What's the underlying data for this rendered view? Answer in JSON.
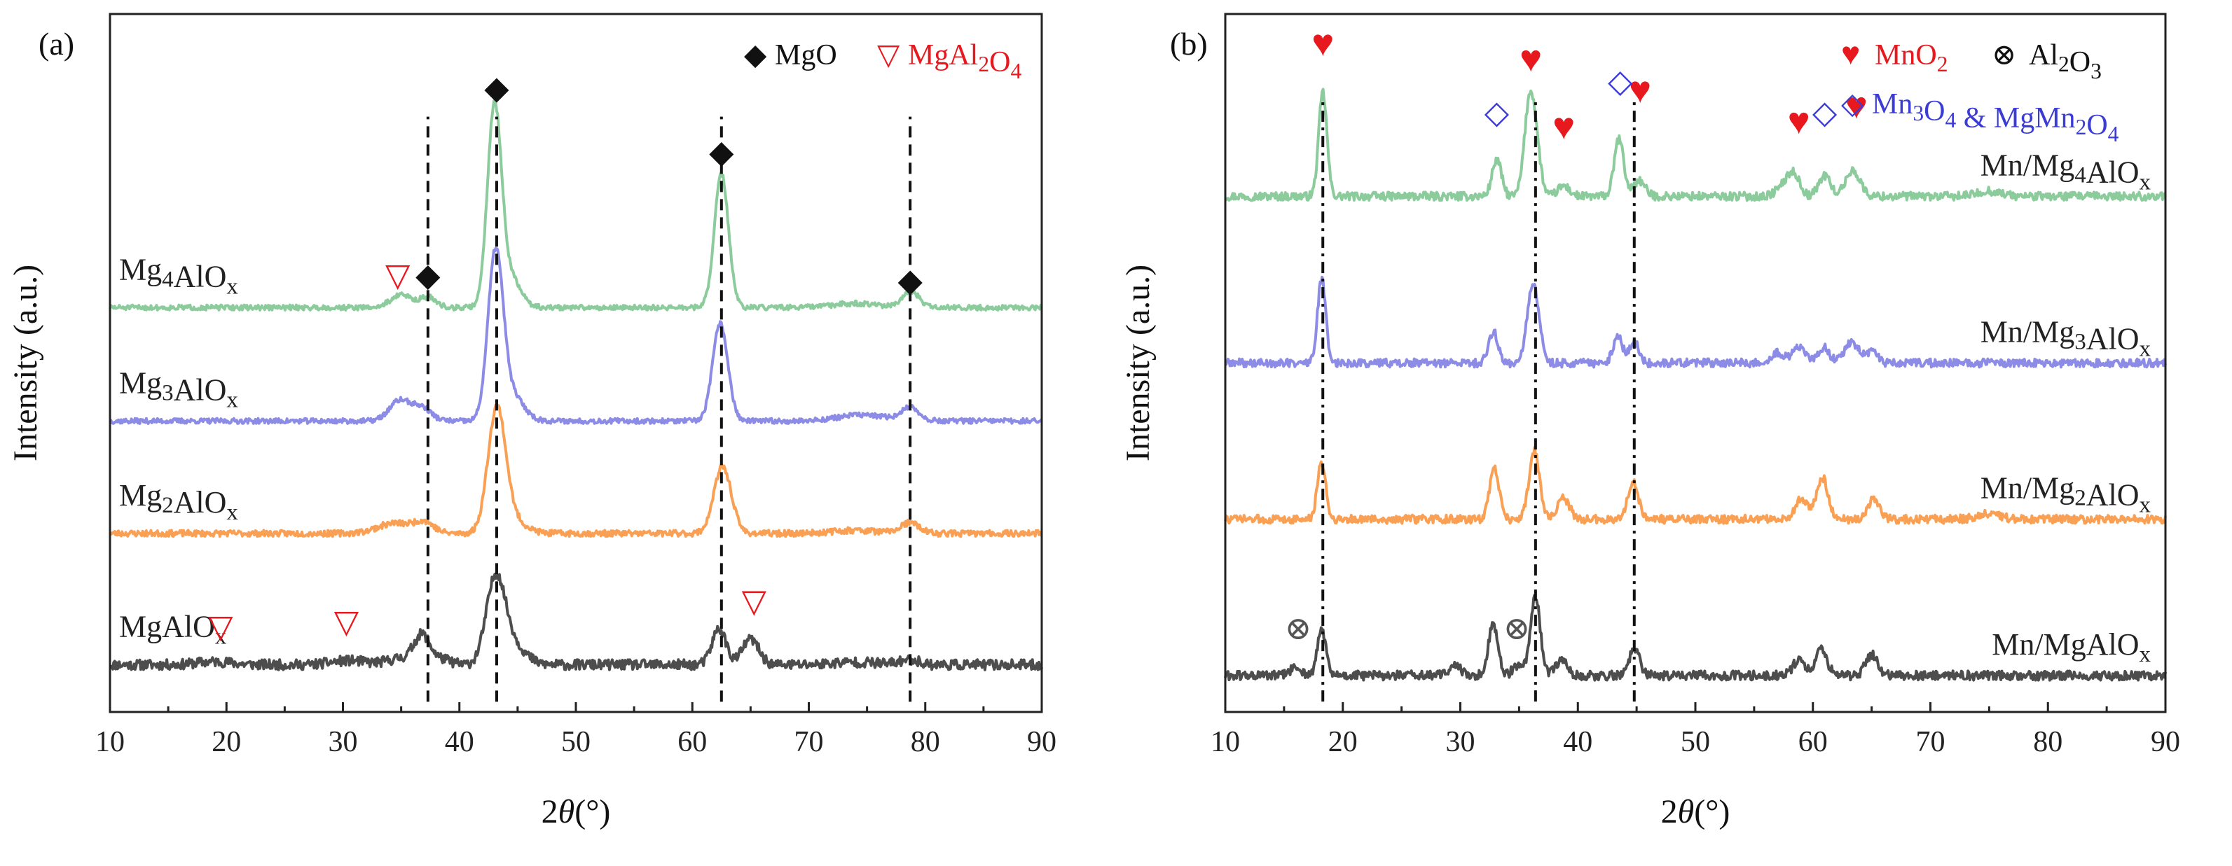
{
  "colors": {
    "MgAlOx": "#4d4d4d",
    "Mg2AlOx": "#f9a055",
    "Mg3AlOx": "#8c8ce6",
    "Mg4AlOx": "#8ccc9c",
    "red": "#e8191e",
    "blue": "#3b3bd6",
    "black": "#111111"
  },
  "chart_data": [
    {
      "panel": "(a)",
      "type": "line",
      "title": "",
      "xlabel": "2θ(°)",
      "ylabel": "Intensity (a.u.)",
      "xlim": [
        10,
        90
      ],
      "xticks": [
        10,
        20,
        30,
        40,
        50,
        60,
        70,
        80,
        90
      ],
      "legend": [
        {
          "symbol": "◆",
          "text": "MgO",
          "color": "#111111"
        },
        {
          "symbol": "▽",
          "text": "MgAl₂O₄",
          "color": "#e8191e"
        }
      ],
      "series": [
        {
          "name": "MgAlOx",
          "label": "MgAlOₓ",
          "color": "#4d4d4d",
          "offset": 0,
          "baseline": 1.2,
          "noise": 1.0,
          "seed": 11,
          "peaks": [
            [
              19,
              0.6,
              1.5
            ],
            [
              30.5,
              0.8,
              1.5
            ],
            [
              35,
              1.2,
              1.2
            ],
            [
              36.8,
              5.5,
              0.7
            ],
            [
              38.5,
              1.0,
              0.8
            ],
            [
              43.1,
              16,
              0.8
            ],
            [
              44.5,
              4,
              1.1
            ],
            [
              62.3,
              7,
              0.6
            ],
            [
              65,
              5,
              0.7
            ],
            [
              74,
              0.5,
              2
            ],
            [
              78.7,
              1.0,
              0.8
            ]
          ]
        },
        {
          "name": "Mg2AlOx",
          "label": "Mg₂AlOₓ",
          "color": "#f9a055",
          "offset": 26,
          "baseline": 0.8,
          "noise": 0.6,
          "seed": 23,
          "peaks": [
            [
              34.5,
              2.0,
              1.5
            ],
            [
              37,
              2.0,
              0.8
            ],
            [
              43.2,
              23,
              0.75
            ],
            [
              44.3,
              3,
              1.2
            ],
            [
              62.6,
              13,
              0.75
            ],
            [
              74,
              0.6,
              2
            ],
            [
              78.7,
              2.0,
              0.8
            ]
          ]
        },
        {
          "name": "Mg3AlOx",
          "label": "Mg₃AlOₓ",
          "color": "#8c8ce6",
          "offset": 48,
          "baseline": 0.7,
          "noise": 0.5,
          "seed": 37,
          "peaks": [
            [
              34.9,
              4.0,
              0.9
            ],
            [
              36.8,
              2.5,
              0.8
            ],
            [
              43.1,
              32,
              0.65
            ],
            [
              44.5,
              5,
              1.0
            ],
            [
              62.4,
              19,
              0.65
            ],
            [
              74.5,
              1.2,
              2
            ],
            [
              78.7,
              2.5,
              0.8
            ]
          ]
        },
        {
          "name": "Mg4AlOx",
          "label": "Mg₄AlOₓ",
          "color": "#8ccc9c",
          "offset": 70,
          "baseline": 0.8,
          "noise": 0.5,
          "seed": 51,
          "peaks": [
            [
              35,
              2.5,
              0.9
            ],
            [
              37.3,
              2.0,
              0.7
            ],
            [
              43,
              38,
              0.6
            ],
            [
              44.3,
              6,
              0.9
            ],
            [
              62.5,
              26,
              0.6
            ],
            [
              74,
              0.8,
              2
            ],
            [
              78.8,
              3.0,
              0.7
            ]
          ]
        }
      ],
      "reference_lines": [
        37.3,
        43.2,
        62.5,
        78.7
      ],
      "markers": [
        {
          "symbol": "◆",
          "x": 37.3,
          "y": 75,
          "color": "#111111"
        },
        {
          "symbol": "◆",
          "x": 43.2,
          "y": 111.5,
          "color": "#111111"
        },
        {
          "symbol": "◆",
          "x": 62.5,
          "y": 99,
          "color": "#111111"
        },
        {
          "symbol": "◆",
          "x": 78.7,
          "y": 74,
          "color": "#111111"
        },
        {
          "symbol": "▽",
          "x": 34.7,
          "y": 75,
          "color": "#e8191e"
        },
        {
          "symbol": "▽",
          "x": 19.5,
          "y": 6.5,
          "color": "#e8191e"
        },
        {
          "symbol": "▽",
          "x": 30.3,
          "y": 7.5,
          "color": "#e8191e"
        },
        {
          "symbol": "▽",
          "x": 65.3,
          "y": 11.5,
          "color": "#e8191e"
        }
      ],
      "ylim": [
        -8,
        128
      ]
    },
    {
      "panel": "(b)",
      "type": "line",
      "title": "",
      "xlabel": "2θ(°)",
      "ylabel": "Intensity (a.u.)",
      "xlim": [
        10,
        90
      ],
      "xticks": [
        10,
        20,
        30,
        40,
        50,
        60,
        70,
        80,
        90
      ],
      "legend": [
        {
          "symbol": "♥",
          "text": "MnO₂",
          "color": "#e8191e"
        },
        {
          "symbol": "⊗",
          "text": "Al₂O₃",
          "color": "#111111"
        },
        {
          "symbol": "◇",
          "text": "Mn₃O₄ & MgMn₂O₄",
          "color": "#3b3bd6"
        }
      ],
      "series": [
        {
          "name": "Mn/MgAlOx",
          "label": "Mn/MgAlOₓ",
          "color": "#4d4d4d",
          "offset": 0,
          "baseline": 1.0,
          "noise": 0.9,
          "seed": 61,
          "peaks": [
            [
              16,
              1.5,
              0.5
            ],
            [
              18.2,
              9,
              0.35
            ],
            [
              29.5,
              2,
              0.5
            ],
            [
              32.8,
              10,
              0.4
            ],
            [
              35,
              2,
              0.5
            ],
            [
              36.4,
              15,
              0.4
            ],
            [
              38.6,
              3,
              0.5
            ],
            [
              44.8,
              5,
              0.45
            ],
            [
              58.8,
              3,
              0.5
            ],
            [
              60.7,
              5,
              0.5
            ],
            [
              65,
              4,
              0.5
            ]
          ]
        },
        {
          "name": "Mn/Mg2AlOx",
          "label": "Mn/Mg₂AlOₓ",
          "color": "#f9a055",
          "offset": 30,
          "baseline": 1.0,
          "noise": 0.8,
          "seed": 73,
          "peaks": [
            [
              18.2,
              11,
              0.35
            ],
            [
              32.9,
              10,
              0.4
            ],
            [
              36.3,
              13,
              0.45
            ],
            [
              38.8,
              4,
              0.5
            ],
            [
              44.7,
              7,
              0.45
            ],
            [
              59,
              4,
              0.5
            ],
            [
              60.8,
              8,
              0.5
            ],
            [
              65.2,
              4,
              0.5
            ],
            [
              75,
              1,
              1
            ]
          ]
        },
        {
          "name": "Mn/Mg3AlOx",
          "label": "Mn/Mg₃AlOₓ",
          "color": "#8c8ce6",
          "offset": 60,
          "baseline": 1.0,
          "noise": 0.8,
          "seed": 89,
          "peaks": [
            [
              18.2,
              16,
              0.35
            ],
            [
              32.8,
              6,
              0.4
            ],
            [
              36.2,
              15,
              0.5
            ],
            [
              43.4,
              5,
              0.4
            ],
            [
              44.8,
              4,
              0.4
            ],
            [
              57,
              2,
              0.6
            ],
            [
              58.8,
              3,
              0.5
            ],
            [
              60.9,
              3,
              0.5
            ],
            [
              63.3,
              4,
              0.6
            ],
            [
              65,
              2,
              0.5
            ]
          ]
        },
        {
          "name": "Mn/Mg4AlOx",
          "label": "Mn/Mg₄AlOₓ",
          "color": "#8ccc9c",
          "offset": 92,
          "baseline": 1.0,
          "noise": 0.8,
          "seed": 97,
          "peaks": [
            [
              18.3,
              20,
              0.35
            ],
            [
              33.1,
              7,
              0.4
            ],
            [
              35.9,
              18,
              0.45
            ],
            [
              36.5,
              6,
              0.4
            ],
            [
              38.8,
              2,
              0.5
            ],
            [
              43.5,
              11,
              0.4
            ],
            [
              45.2,
              3,
              0.5
            ],
            [
              57.5,
              2,
              0.6
            ],
            [
              58.4,
              4,
              0.5
            ],
            [
              61,
              4,
              0.5
            ],
            [
              63.4,
              5,
              0.6
            ],
            [
              75,
              1,
              1
            ]
          ]
        }
      ],
      "reference_lines": [
        18.3,
        36.4,
        44.8
      ],
      "markers": [
        {
          "symbol": "♥",
          "x": 18.3,
          "y": 120,
          "color": "#e8191e"
        },
        {
          "symbol": "♥",
          "x": 36.0,
          "y": 117,
          "color": "#e8191e"
        },
        {
          "symbol": "♥",
          "x": 38.8,
          "y": 104,
          "color": "#e8191e"
        },
        {
          "symbol": "♥",
          "x": 45.3,
          "y": 111,
          "color": "#e8191e"
        },
        {
          "symbol": "♥",
          "x": 58.8,
          "y": 105,
          "color": "#e8191e"
        },
        {
          "symbol": "♥",
          "x": 63.7,
          "y": 108,
          "color": "#e8191e"
        },
        {
          "symbol": "◇",
          "x": 33.1,
          "y": 107,
          "color": "#3b3bd6"
        },
        {
          "symbol": "◇",
          "x": 43.6,
          "y": 113,
          "color": "#3b3bd6"
        },
        {
          "symbol": "◇",
          "x": 61.0,
          "y": 107,
          "color": "#3b3bd6"
        },
        {
          "symbol": "⊗",
          "x": 16.2,
          "y": 8,
          "color": "#555555"
        },
        {
          "symbol": "⊗",
          "x": 34.8,
          "y": 8,
          "color": "#555555"
        }
      ],
      "ylim": [
        -6,
        128
      ]
    }
  ]
}
